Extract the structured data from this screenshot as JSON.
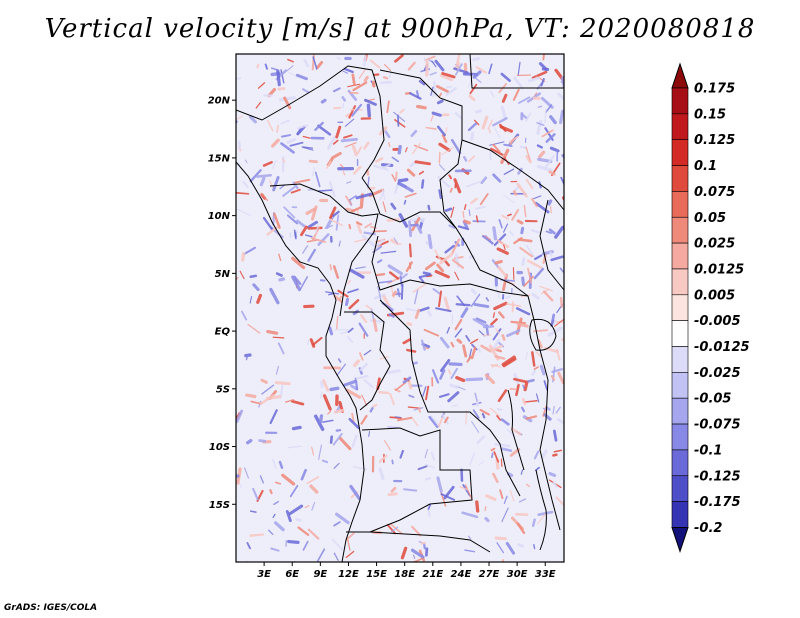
{
  "title": "Vertical velocity [m/s] at 900hPa, VT: 2020080818",
  "footer": "GrADS: IGES/COLA",
  "map": {
    "lon_range": [
      0,
      35
    ],
    "lat_range": [
      -20,
      24
    ],
    "lat_ticks": [
      {
        "value": 20,
        "label": "20N"
      },
      {
        "value": 15,
        "label": "15N"
      },
      {
        "value": 10,
        "label": "10N"
      },
      {
        "value": 5,
        "label": "5N"
      },
      {
        "value": 0,
        "label": "EQ"
      },
      {
        "value": -5,
        "label": "5S"
      },
      {
        "value": -10,
        "label": "10S"
      },
      {
        "value": -15,
        "label": "15S"
      }
    ],
    "lon_ticks": [
      {
        "value": 3,
        "label": "3E"
      },
      {
        "value": 6,
        "label": "6E"
      },
      {
        "value": 9,
        "label": "9E"
      },
      {
        "value": 12,
        "label": "12E"
      },
      {
        "value": 15,
        "label": "15E"
      },
      {
        "value": 18,
        "label": "18E"
      },
      {
        "value": 21,
        "label": "21E"
      },
      {
        "value": 24,
        "label": "24E"
      },
      {
        "value": 27,
        "label": "27E"
      },
      {
        "value": 30,
        "label": "30E"
      },
      {
        "value": 33,
        "label": "33E"
      }
    ]
  },
  "colorbar": {
    "levels": [
      {
        "label": "0.175",
        "color": "#a50f15"
      },
      {
        "label": "0.15",
        "color": "#c0191d"
      },
      {
        "label": "0.125",
        "color": "#d42a26"
      },
      {
        "label": "0.1",
        "color": "#e04a3c"
      },
      {
        "label": "0.075",
        "color": "#e86a58"
      },
      {
        "label": "0.05",
        "color": "#ef8a7a"
      },
      {
        "label": "0.025",
        "color": "#f4aaa0"
      },
      {
        "label": "0.0125",
        "color": "#f8c8c2"
      },
      {
        "label": "0.005",
        "color": "#fce4e0"
      },
      {
        "label": "-0.005",
        "color": "#ffffff"
      },
      {
        "label": "-0.0125",
        "color": "#dcdcf8"
      },
      {
        "label": "-0.025",
        "color": "#c2c2f4"
      },
      {
        "label": "-0.05",
        "color": "#a6a6ee"
      },
      {
        "label": "-0.075",
        "color": "#8888e6"
      },
      {
        "label": "-0.1",
        "color": "#6a6ad8"
      },
      {
        "label": "-0.125",
        "color": "#4e4ec8"
      },
      {
        "label": "-0.175",
        "color": "#3434b4"
      },
      {
        "label": "-0.2",
        "color": "#1c1c9a"
      }
    ],
    "top_arrow_color": "#8b0a0a",
    "bottom_arrow_color": "#12127a"
  }
}
